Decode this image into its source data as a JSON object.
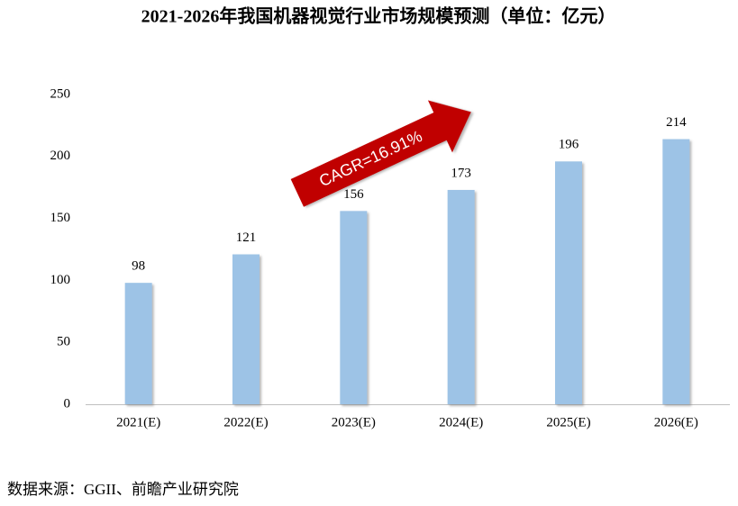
{
  "chart_data": {
    "type": "bar",
    "title": "2021-2026年我国机器视觉行业市场规模预测（单位：亿元）",
    "categories": [
      "2021(E)",
      "2022(E)",
      "2023(E)",
      "2024(E)",
      "2025(E)",
      "2026(E)"
    ],
    "values": [
      98,
      121,
      156,
      173,
      196,
      214
    ],
    "color": "#9dc3e6",
    "ylim": [
      0,
      250
    ],
    "yticks": [
      0,
      50,
      100,
      150,
      200,
      250
    ],
    "grid": false,
    "annotation": "CAGR=16.91%",
    "source": "数据来源：GGII、前瞻产业研究院"
  }
}
